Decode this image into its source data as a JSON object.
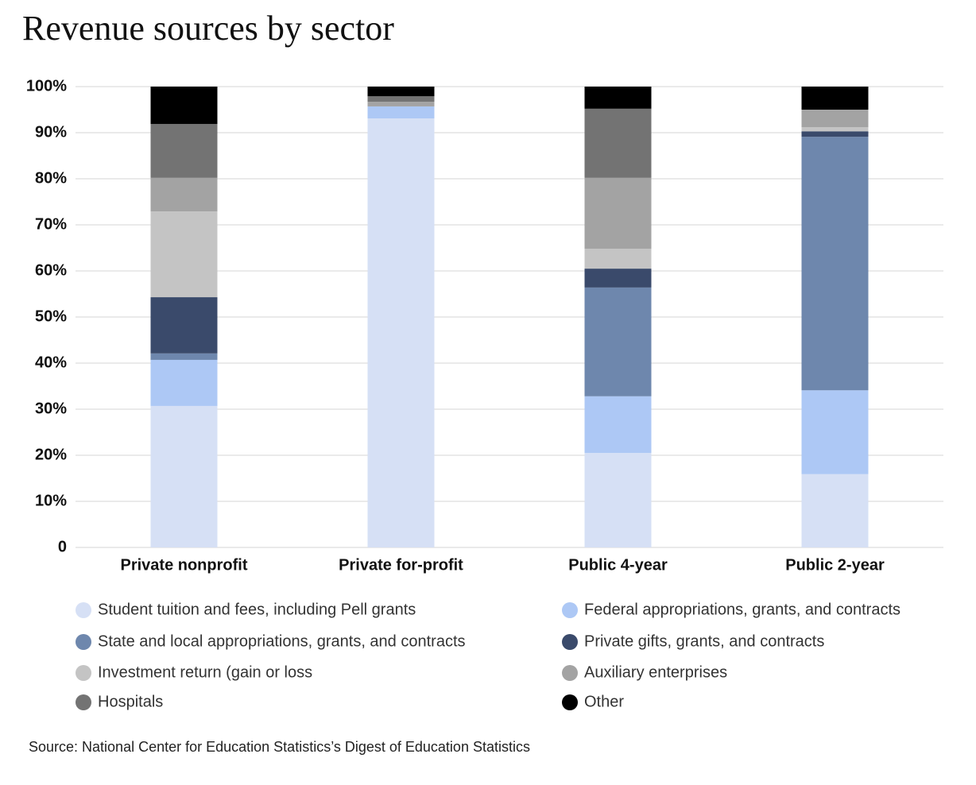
{
  "chart_data": {
    "type": "stacked_bar",
    "title": "Revenue sources by sector",
    "categories": [
      "Private nonprofit",
      "Private for-profit",
      "Public 4-year",
      "Public 2-year"
    ],
    "series": [
      {
        "name": "Student tuition and fees, including Pell grants",
        "color": "#d6e0f5",
        "values": [
          30.7,
          93.1,
          20.5,
          15.9
        ]
      },
      {
        "name": "Federal appropriations, grants, and contracts",
        "color": "#adc8f5",
        "values": [
          10.0,
          2.6,
          12.3,
          18.2
        ]
      },
      {
        "name": "State and local appropriations, grants, and contracts",
        "color": "#6e87ad",
        "values": [
          1.4,
          0,
          23.6,
          55.0
        ]
      },
      {
        "name": "Private gifts, grants, and contracts",
        "color": "#3a4a6b",
        "values": [
          12.2,
          0,
          4.1,
          1.2
        ]
      },
      {
        "name": "Investment return (gain or loss",
        "color": "#c4c4c4",
        "values": [
          18.6,
          0,
          4.3,
          0.9
        ]
      },
      {
        "name": "Auxiliary enterprises",
        "color": "#a3a3a3",
        "values": [
          7.3,
          1.0,
          15.4,
          3.8
        ]
      },
      {
        "name": "Hospitals",
        "color": "#737373",
        "values": [
          11.7,
          1.2,
          15.0,
          0
        ]
      },
      {
        "name": "Other",
        "color": "#000000",
        "values": [
          8.1,
          2.1,
          4.8,
          5.0
        ]
      }
    ],
    "ylim": [
      0,
      100
    ],
    "yticks": [
      0,
      {
        "value": 10,
        "label": "10%"
      },
      {
        "value": 20,
        "label": "20%"
      },
      {
        "value": 30,
        "label": "30%"
      },
      {
        "value": 40,
        "label": "40%"
      },
      {
        "value": 50,
        "label": "50%"
      },
      {
        "value": 60,
        "label": "60%"
      },
      {
        "value": 70,
        "label": "70%"
      },
      {
        "value": 80,
        "label": "80%"
      },
      {
        "value": 90,
        "label": "90%"
      },
      {
        "value": 100,
        "label": "100%"
      }
    ],
    "grid": true,
    "source": "Source: National Center for Education Statistics’s Digest of Education Statistics"
  }
}
